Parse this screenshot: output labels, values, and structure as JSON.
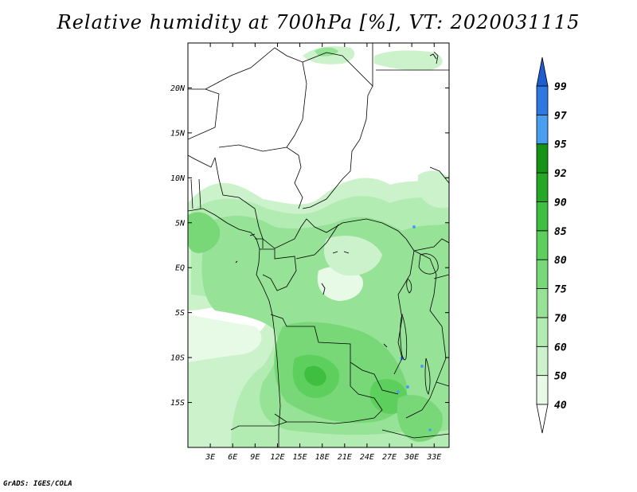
{
  "title": "Relative humidity at 700hPa [%], VT: 2020031115",
  "credit": "GrADS: IGES/COLA",
  "chart_data": {
    "type": "heatmap",
    "title": "Relative humidity at 700hPa [%], VT: 2020031115",
    "variable": "Relative humidity",
    "level": "700hPa",
    "unit": "%",
    "valid_time": "2020031115",
    "lon_range": [
      0,
      35
    ],
    "lat_range": [
      -20,
      25
    ],
    "x_ticks": [
      {
        "value": 3,
        "label": "3E"
      },
      {
        "value": 6,
        "label": "6E"
      },
      {
        "value": 9,
        "label": "9E"
      },
      {
        "value": 12,
        "label": "12E"
      },
      {
        "value": 15,
        "label": "15E"
      },
      {
        "value": 18,
        "label": "18E"
      },
      {
        "value": 21,
        "label": "21E"
      },
      {
        "value": 24,
        "label": "24E"
      },
      {
        "value": 27,
        "label": "27E"
      },
      {
        "value": 30,
        "label": "30E"
      },
      {
        "value": 33,
        "label": "33E"
      }
    ],
    "y_ticks": [
      {
        "value": 20,
        "label": "20N"
      },
      {
        "value": 15,
        "label": "15N"
      },
      {
        "value": 10,
        "label": "10N"
      },
      {
        "value": 5,
        "label": "5N"
      },
      {
        "value": 0,
        "label": "EQ"
      },
      {
        "value": -5,
        "label": "5S"
      },
      {
        "value": -10,
        "label": "10S"
      },
      {
        "value": -15,
        "label": "15S"
      }
    ],
    "colorbar": {
      "levels": [
        40,
        50,
        60,
        70,
        75,
        80,
        85,
        90,
        92,
        95,
        97,
        99
      ],
      "labels": [
        "40",
        "50",
        "60",
        "70",
        "75",
        "80",
        "85",
        "90",
        "92",
        "95",
        "97",
        "99"
      ],
      "colors": [
        "#ffffff",
        "#e6fae6",
        "#ccf2cc",
        "#b3ecb3",
        "#96e296",
        "#78d878",
        "#5ccf5c",
        "#3fbf3f",
        "#25a825",
        "#169216",
        "#4a9ef0",
        "#2f78e0",
        "#1f5ccf"
      ]
    }
  }
}
